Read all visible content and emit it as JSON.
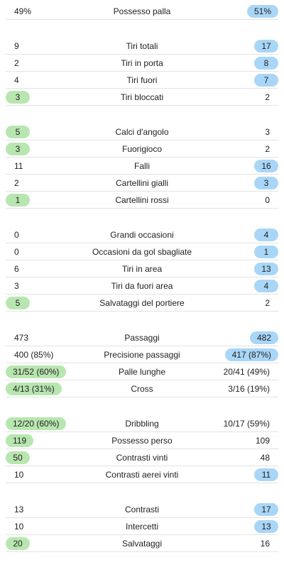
{
  "colors": {
    "home_highlight": "#b8e6b0",
    "away_highlight": "#a9d6f7",
    "divider": "#e3e3e3"
  },
  "groups": [
    {
      "rows": [
        {
          "label": "Possesso palla",
          "home": "49%",
          "away": "51%",
          "winner": "away"
        }
      ]
    },
    {
      "rows": [
        {
          "label": "Tiri totali",
          "home": "9",
          "away": "17",
          "winner": "away"
        },
        {
          "label": "Tiri in porta",
          "home": "2",
          "away": "8",
          "winner": "away"
        },
        {
          "label": "Tiri fuori",
          "home": "4",
          "away": "7",
          "winner": "away"
        },
        {
          "label": "Tiri bloccati",
          "home": "3",
          "away": "2",
          "winner": "home"
        }
      ]
    },
    {
      "rows": [
        {
          "label": "Calci d'angolo",
          "home": "5",
          "away": "3",
          "winner": "home"
        },
        {
          "label": "Fuorigioco",
          "home": "3",
          "away": "2",
          "winner": "home"
        },
        {
          "label": "Falli",
          "home": "11",
          "away": "16",
          "winner": "away"
        },
        {
          "label": "Cartellini gialli",
          "home": "2",
          "away": "3",
          "winner": "away"
        },
        {
          "label": "Cartellini rossi",
          "home": "1",
          "away": "0",
          "winner": "home"
        }
      ]
    },
    {
      "rows": [
        {
          "label": "Grandi occasioni",
          "home": "0",
          "away": "4",
          "winner": "away"
        },
        {
          "label": "Occasioni da gol sbagliate",
          "home": "0",
          "away": "1",
          "winner": "away"
        },
        {
          "label": "Tiri in area",
          "home": "6",
          "away": "13",
          "winner": "away"
        },
        {
          "label": "Tiri da fuori area",
          "home": "3",
          "away": "4",
          "winner": "away"
        },
        {
          "label": "Salvataggi del portiere",
          "home": "5",
          "away": "2",
          "winner": "home"
        }
      ]
    },
    {
      "rows": [
        {
          "label": "Passaggi",
          "home": "473",
          "away": "482",
          "winner": "away"
        },
        {
          "label": "Precisione passaggi",
          "home": "400 (85%)",
          "away": "417 (87%)",
          "winner": "away"
        },
        {
          "label": "Palle lunghe",
          "home": "31/52 (60%)",
          "away": "20/41 (49%)",
          "winner": "home"
        },
        {
          "label": "Cross",
          "home": "4/13 (31%)",
          "away": "3/16 (19%)",
          "winner": "home"
        }
      ]
    },
    {
      "rows": [
        {
          "label": "Dribbling",
          "home": "12/20 (60%)",
          "away": "10/17 (59%)",
          "winner": "home"
        },
        {
          "label": "Possesso perso",
          "home": "119",
          "away": "109",
          "winner": "home"
        },
        {
          "label": "Contrasti vinti",
          "home": "50",
          "away": "48",
          "winner": "home"
        },
        {
          "label": "Contrasti aerei vinti",
          "home": "10",
          "away": "11",
          "winner": "away"
        }
      ]
    },
    {
      "rows": [
        {
          "label": "Contrasti",
          "home": "13",
          "away": "17",
          "winner": "away"
        },
        {
          "label": "Intercetti",
          "home": "10",
          "away": "13",
          "winner": "away"
        },
        {
          "label": "Salvataggi",
          "home": "20",
          "away": "16",
          "winner": "home"
        }
      ]
    }
  ]
}
